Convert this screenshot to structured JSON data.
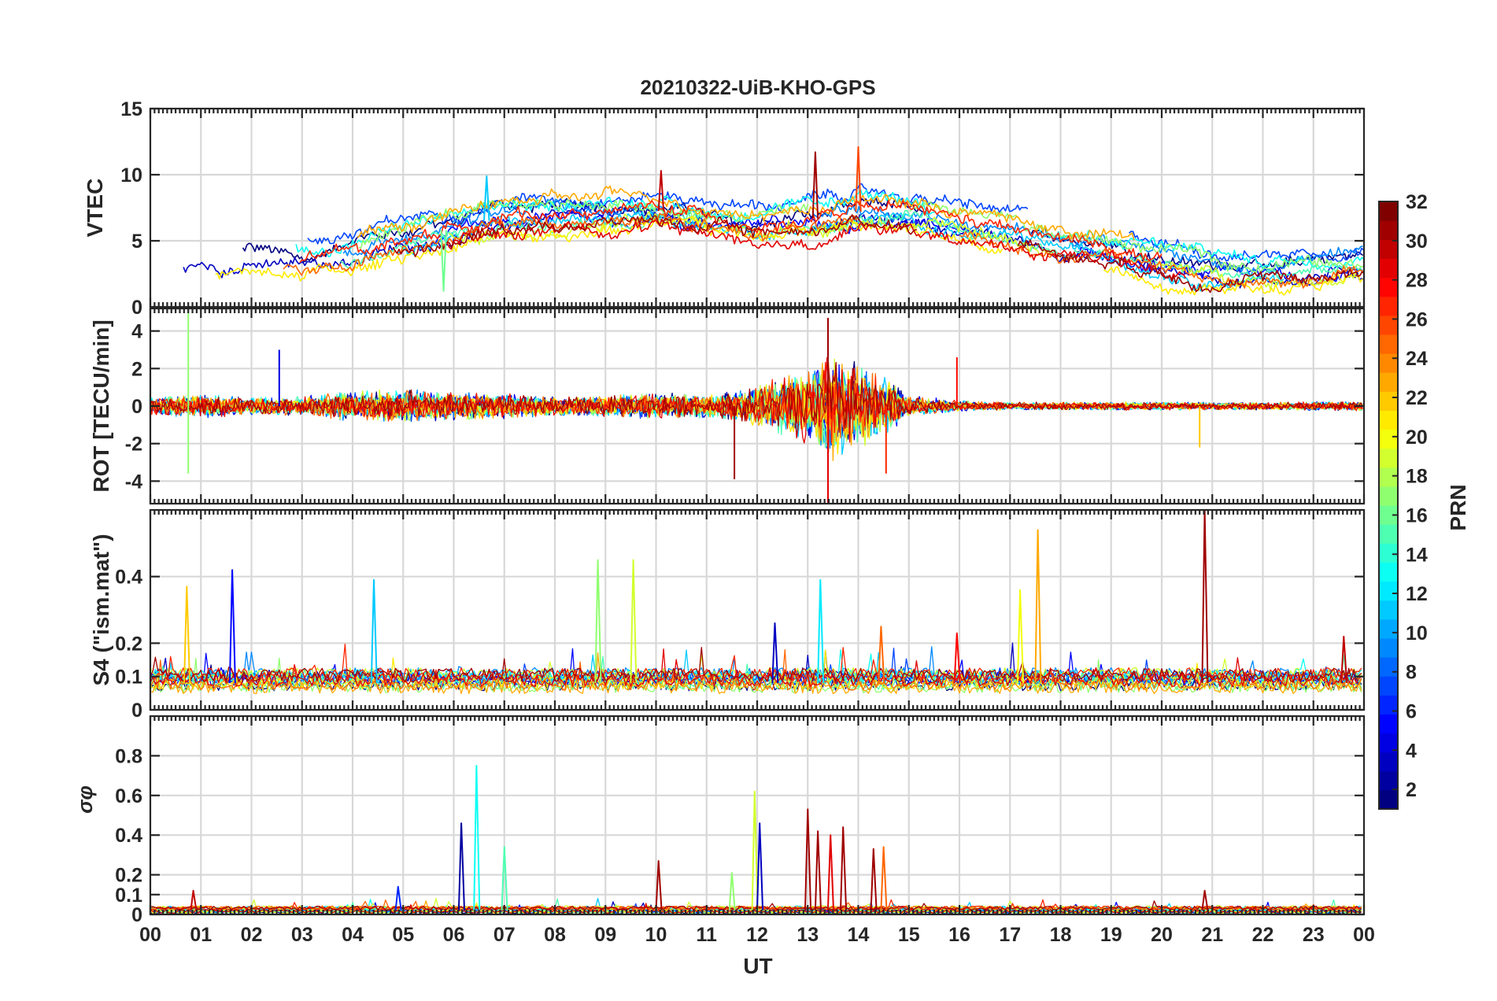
{
  "figure": {
    "title": "20210322-UiB-KHO-GPS",
    "colorbar": {
      "label": "PRN",
      "ticks": [
        "2",
        "4",
        "6",
        "8",
        "10",
        "12",
        "14",
        "16",
        "18",
        "20",
        "22",
        "24",
        "26",
        "28",
        "30",
        "32"
      ],
      "range": [
        1,
        32
      ],
      "colormap": "jet"
    }
  },
  "chart_data": [
    {
      "type": "line",
      "ylabel": "VTEC",
      "ylim": [
        0,
        15
      ],
      "yticks": [
        "0",
        "5",
        "10",
        "15"
      ],
      "grid": true,
      "x_unit": "UT hour",
      "xlim": [
        0,
        24
      ],
      "series_mean": [
        [
          0,
          3.2
        ],
        [
          1,
          3.6
        ],
        [
          2,
          3.8
        ],
        [
          3,
          3.6
        ],
        [
          4,
          4.1
        ],
        [
          5,
          5.0
        ],
        [
          6,
          6.0
        ],
        [
          7,
          6.8
        ],
        [
          8,
          7.0
        ],
        [
          9,
          7.2
        ],
        [
          10,
          7.3
        ],
        [
          11,
          6.8
        ],
        [
          12,
          6.3
        ],
        [
          13,
          6.6
        ],
        [
          14,
          7.2
        ],
        [
          15,
          7.0
        ],
        [
          16,
          6.3
        ],
        [
          17,
          5.6
        ],
        [
          18,
          4.8
        ],
        [
          19,
          4.3
        ],
        [
          20,
          3.6
        ],
        [
          21,
          3.0
        ],
        [
          22,
          2.8
        ],
        [
          23,
          3.0
        ],
        [
          24,
          3.3
        ]
      ],
      "series_spread": 1.4,
      "noted_peaks": [
        {
          "x": 13.15,
          "y": 11.7,
          "prn": 31
        },
        {
          "x": 14.0,
          "y": 12.1,
          "prn": 26
        },
        {
          "x": 10.1,
          "y": 10.3,
          "prn": 30
        },
        {
          "x": 6.65,
          "y": 9.9,
          "prn": 11
        },
        {
          "x": 5.8,
          "y": 1.2,
          "prn": 16
        }
      ]
    },
    {
      "type": "line",
      "ylabel": "ROT [TECU/min]",
      "ylim": [
        -5.2,
        5.2
      ],
      "yticks": [
        "-4",
        "-2",
        "0",
        "2",
        "4"
      ],
      "ytick_values": [
        -4,
        -2,
        0,
        2,
        4
      ],
      "grid": true,
      "xlim": [
        0,
        24
      ],
      "noise_amplitude": [
        [
          0,
          0.45
        ],
        [
          1,
          0.55
        ],
        [
          2,
          0.45
        ],
        [
          3,
          0.45
        ],
        [
          4,
          0.7
        ],
        [
          5,
          0.75
        ],
        [
          6,
          0.7
        ],
        [
          7,
          0.6
        ],
        [
          8,
          0.45
        ],
        [
          9,
          0.5
        ],
        [
          10,
          0.6
        ],
        [
          11,
          0.55
        ],
        [
          12,
          0.9
        ],
        [
          13,
          1.9
        ],
        [
          13.5,
          2.6
        ],
        [
          14,
          2.0
        ],
        [
          14.7,
          1.1
        ],
        [
          15,
          0.5
        ],
        [
          16,
          0.25
        ],
        [
          17,
          0.18
        ],
        [
          18,
          0.18
        ],
        [
          19,
          0.2
        ],
        [
          20,
          0.2
        ],
        [
          21,
          0.18
        ],
        [
          22,
          0.18
        ],
        [
          23,
          0.2
        ],
        [
          24,
          0.22
        ]
      ],
      "noted_spikes": [
        {
          "x": 0.75,
          "y": 5.0,
          "prn": 17
        },
        {
          "x": 0.75,
          "y": -3.6,
          "prn": 17
        },
        {
          "x": 13.4,
          "y": 4.7,
          "prn": 31
        },
        {
          "x": 13.4,
          "y": -5.2,
          "prn": 29
        },
        {
          "x": 11.55,
          "y": -3.9,
          "prn": 31
        },
        {
          "x": 14.55,
          "y": -3.6,
          "prn": 27
        },
        {
          "x": 2.55,
          "y": 3.0,
          "prn": 4
        },
        {
          "x": 15.95,
          "y": 2.6,
          "prn": 28
        },
        {
          "x": 20.75,
          "y": -2.2,
          "prn": 22
        }
      ]
    },
    {
      "type": "line",
      "ylabel": "S4 (\"ism.mat\")",
      "ylim": [
        0,
        0.6
      ],
      "yticks": [
        "0",
        "0.1",
        "0.2",
        "0.4"
      ],
      "ytick_values": [
        0,
        0.1,
        0.2,
        0.4
      ],
      "grid": true,
      "xlim": [
        0,
        24
      ],
      "baseline_range": [
        0.04,
        0.12
      ],
      "noted_spikes": [
        {
          "x": 0.72,
          "y": 0.37,
          "prn": 22
        },
        {
          "x": 1.62,
          "y": 0.42,
          "prn": 5
        },
        {
          "x": 4.42,
          "y": 0.39,
          "prn": 11
        },
        {
          "x": 8.85,
          "y": 0.45,
          "prn": 17
        },
        {
          "x": 9.55,
          "y": 0.45,
          "prn": 19
        },
        {
          "x": 12.35,
          "y": 0.26,
          "prn": 3
        },
        {
          "x": 13.25,
          "y": 0.39,
          "prn": 12
        },
        {
          "x": 14.45,
          "y": 0.25,
          "prn": 25
        },
        {
          "x": 15.95,
          "y": 0.23,
          "prn": 28
        },
        {
          "x": 17.2,
          "y": 0.36,
          "prn": 20
        },
        {
          "x": 17.55,
          "y": 0.54,
          "prn": 23
        },
        {
          "x": 20.85,
          "y": 0.6,
          "prn": 31
        },
        {
          "x": 23.6,
          "y": 0.22,
          "prn": 30
        }
      ]
    },
    {
      "type": "line",
      "ylabel": "σφ",
      "ylim": [
        0,
        1.0
      ],
      "yticks": [
        "0",
        "0.1",
        "0.2",
        "0.4",
        "0.6",
        "0.8"
      ],
      "ytick_values": [
        0,
        0.1,
        0.2,
        0.4,
        0.6,
        0.8
      ],
      "grid": true,
      "xlim": [
        0,
        24
      ],
      "xlabel": "UT",
      "xticks": [
        "00",
        "01",
        "02",
        "03",
        "04",
        "05",
        "06",
        "07",
        "08",
        "09",
        "10",
        "11",
        "12",
        "13",
        "14",
        "15",
        "16",
        "17",
        "18",
        "19",
        "20",
        "21",
        "22",
        "23",
        "00"
      ],
      "baseline_range": [
        0.0,
        0.04
      ],
      "noted_spikes": [
        {
          "x": 6.15,
          "y": 0.46,
          "prn": 2
        },
        {
          "x": 6.45,
          "y": 0.75,
          "prn": 13
        },
        {
          "x": 7.0,
          "y": 0.34,
          "prn": 15
        },
        {
          "x": 4.9,
          "y": 0.14,
          "prn": 6
        },
        {
          "x": 0.85,
          "y": 0.12,
          "prn": 30
        },
        {
          "x": 10.05,
          "y": 0.27,
          "prn": 31
        },
        {
          "x": 11.5,
          "y": 0.21,
          "prn": 17
        },
        {
          "x": 11.95,
          "y": 0.62,
          "prn": 19
        },
        {
          "x": 12.05,
          "y": 0.46,
          "prn": 3
        },
        {
          "x": 13.0,
          "y": 0.53,
          "prn": 31
        },
        {
          "x": 13.2,
          "y": 0.42,
          "prn": 31
        },
        {
          "x": 13.45,
          "y": 0.4,
          "prn": 29
        },
        {
          "x": 13.7,
          "y": 0.44,
          "prn": 31
        },
        {
          "x": 14.3,
          "y": 0.33,
          "prn": 31
        },
        {
          "x": 14.5,
          "y": 0.34,
          "prn": 25
        },
        {
          "x": 20.85,
          "y": 0.12,
          "prn": 31
        }
      ]
    }
  ]
}
